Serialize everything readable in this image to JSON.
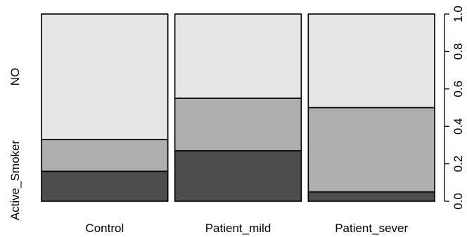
{
  "chart_data": {
    "type": "bar",
    "stacked": true,
    "proportional": true,
    "categories": [
      "Control",
      "Patient_mild",
      "Patient_sever"
    ],
    "bar_widths": [
      1,
      1,
      1
    ],
    "series": [
      {
        "name": "Active_Smoker",
        "values": [
          0.16,
          0.27,
          0.05
        ],
        "color": "#4d4d4d"
      },
      {
        "values": [
          0.17,
          0.28,
          0.45
        ],
        "color": "#aeaeae"
      },
      {
        "name": "NO",
        "values": [
          0.67,
          0.45,
          0.5
        ],
        "color": "#e6e6e6"
      }
    ],
    "y_left_labels": [
      "Active_Smoker",
      "NO"
    ],
    "y_right_ticks": [
      "0.0",
      "0.2",
      "0.4",
      "0.6",
      "0.8",
      "1.0"
    ],
    "y_right_tick_values": [
      0,
      0.2,
      0.4,
      0.6,
      0.8,
      1.0
    ],
    "ylim": [
      0,
      1
    ],
    "grid": false,
    "legend": "none"
  }
}
